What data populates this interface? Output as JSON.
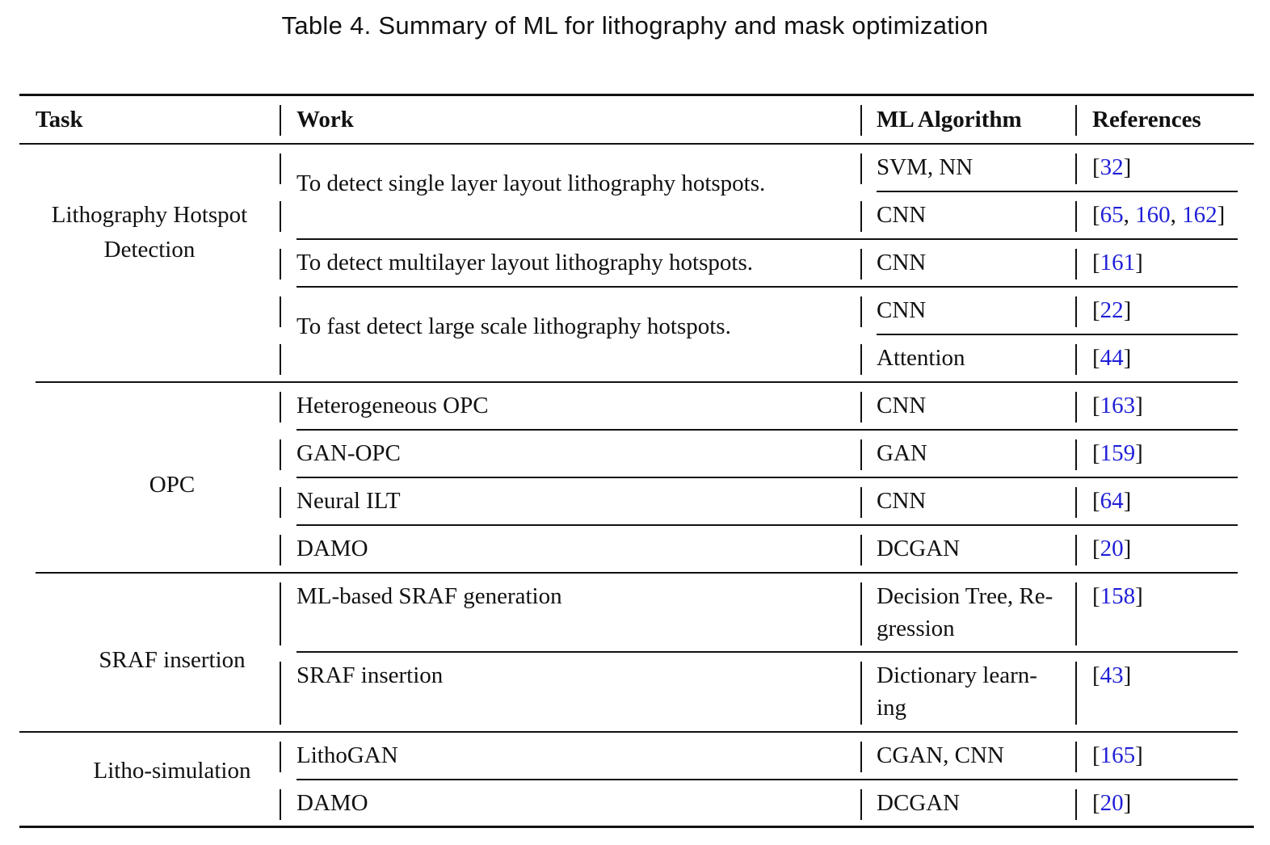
{
  "caption": "Table 4.  Summary of ML for lithography and mask optimization",
  "headers": {
    "task": "Task",
    "work": "Work",
    "algorithm": "ML Algorithm",
    "references": "References"
  },
  "tasks": {
    "hotspot_line1": "Lithography Hotspot",
    "hotspot_line2": "Detection",
    "opc": "OPC",
    "sraf": "SRAF insertion",
    "litho_sim": "Litho-simulation"
  },
  "rows": [
    {
      "work": "To detect single layer layout lithography hotspots.",
      "algorithm": "SVM, NN",
      "refs": [
        "32"
      ]
    },
    {
      "work": "",
      "algorithm": "CNN",
      "refs": [
        "65",
        "160",
        "162"
      ]
    },
    {
      "work": "To detect multilayer layout lithography hotspots.",
      "algorithm": "CNN",
      "refs": [
        "161"
      ]
    },
    {
      "work": "To fast detect large scale lithography hotspots.",
      "algorithm": "CNN",
      "refs": [
        "22"
      ]
    },
    {
      "work": "",
      "algorithm": "Attention",
      "refs": [
        "44"
      ]
    },
    {
      "work": "Heterogeneous OPC",
      "algorithm": "CNN",
      "refs": [
        "163"
      ]
    },
    {
      "work": "GAN-OPC",
      "algorithm": "GAN",
      "refs": [
        "159"
      ]
    },
    {
      "work": "Neural ILT",
      "algorithm": "CNN",
      "refs": [
        "64"
      ]
    },
    {
      "work": "DAMO",
      "algorithm": "DCGAN",
      "refs": [
        "20"
      ]
    },
    {
      "work": "ML-based SRAF generation",
      "algorithm": "Decision Tree, Re-",
      "algorithm2": "gression",
      "refs": [
        "158"
      ]
    },
    {
      "work": "SRAF insertion",
      "algorithm": "Dictionary learn-",
      "algorithm2": "ing",
      "refs": [
        "43"
      ]
    },
    {
      "work": "LithoGAN",
      "algorithm": "CGAN, CNN",
      "refs": [
        "165"
      ]
    },
    {
      "work": "DAMO",
      "algorithm": "DCGAN",
      "refs": [
        "20"
      ]
    }
  ]
}
